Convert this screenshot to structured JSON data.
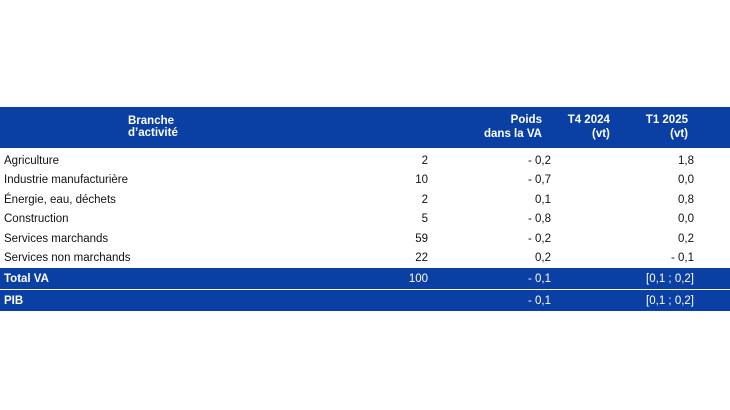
{
  "table": {
    "headers": {
      "branch": "Branche d’activité",
      "weight": [
        "Poids",
        "dans la VA"
      ],
      "t4": [
        "T4 2024",
        "(vt)"
      ],
      "t1": [
        "T1 2025",
        "(vt)"
      ]
    },
    "rows": [
      {
        "branch": "Agriculture",
        "weight": "2",
        "t4": "- 0,2",
        "t1": "1,8"
      },
      {
        "branch": "Industrie manufacturière",
        "weight": "10",
        "t4": "- 0,7",
        "t1": "0,0"
      },
      {
        "branch": "Énergie, eau, déchets",
        "weight": "2",
        "t4": "0,1",
        "t1": "0,8"
      },
      {
        "branch": "Construction",
        "weight": "5",
        "t4": "- 0,8",
        "t1": "0,0"
      },
      {
        "branch": "Services marchands",
        "weight": "59",
        "t4": "- 0,2",
        "t1": "0,2"
      },
      {
        "branch": "Services non marchands",
        "weight": "22",
        "t4": "0,2",
        "t1": "- 0,1"
      }
    ],
    "totals": [
      {
        "branch": "Total VA",
        "weight": "100",
        "t4": "- 0,1",
        "t1": "[0,1 ; 0,2]"
      },
      {
        "branch": "PIB",
        "weight": "",
        "t4": "- 0,1",
        "t1": "[0,1 ; 0,2]"
      }
    ],
    "accent_color": "#0a3fa3"
  }
}
